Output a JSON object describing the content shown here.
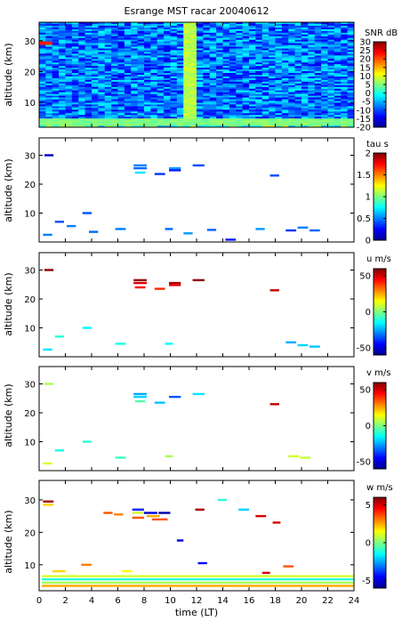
{
  "title": "Esrange MST racar 20040612",
  "chart_data": [
    {
      "type": "heatmap",
      "panel": "snr",
      "ylabel": "altitude (km)",
      "colorbar_label": "SNR dB",
      "xlim": [
        0,
        24
      ],
      "ylim": [
        2,
        36
      ],
      "clim": [
        -20,
        30
      ],
      "yticks": [
        10,
        20,
        30
      ],
      "cticks": [
        -20,
        -15,
        -10,
        -5,
        0,
        5,
        10,
        15,
        20,
        25,
        30
      ],
      "description_bands": [
        {
          "x": [
            11.2,
            12.0
          ],
          "y": [
            3,
            36
          ],
          "value": 8
        },
        {
          "x": [
            0.2,
            1.0
          ],
          "y": [
            28.5,
            30
          ],
          "value": 22
        },
        {
          "x": [
            0,
            24
          ],
          "y": [
            2.5,
            5
          ],
          "value": 5
        }
      ]
    },
    {
      "type": "heatmap",
      "panel": "tau",
      "ylabel": "altitude (km)",
      "colorbar_label": "tau s",
      "xlim": [
        0,
        24
      ],
      "ylim": [
        0,
        36
      ],
      "clim": [
        0,
        2
      ],
      "yticks": [
        10,
        20,
        30
      ],
      "cticks": [
        0,
        0.5,
        1,
        1.5,
        2
      ],
      "segments": [
        {
          "x": [
            0.4,
            1.1
          ],
          "y": 30,
          "v": 0.15
        },
        {
          "x": [
            7.2,
            8.2
          ],
          "y": 26.5,
          "v": 0.5
        },
        {
          "x": [
            7.2,
            8.2
          ],
          "y": 25.5,
          "v": 0.45
        },
        {
          "x": [
            7.3,
            8.1
          ],
          "y": 24,
          "v": 0.7
        },
        {
          "x": [
            8.8,
            9.6
          ],
          "y": 23.5,
          "v": 0.35
        },
        {
          "x": [
            9.9,
            10.8
          ],
          "y": 25.5,
          "v": 0.55
        },
        {
          "x": [
            9.9,
            10.8
          ],
          "y": 24.8,
          "v": 0.3
        },
        {
          "x": [
            11.7,
            12.6
          ],
          "y": 26.5,
          "v": 0.4
        },
        {
          "x": [
            17.6,
            18.3
          ],
          "y": 23,
          "v": 0.4
        },
        {
          "x": [
            1.2,
            1.9
          ],
          "y": 7,
          "v": 0.4
        },
        {
          "x": [
            2.1,
            2.8
          ],
          "y": 5.5,
          "v": 0.5
        },
        {
          "x": [
            3.3,
            4.0
          ],
          "y": 10,
          "v": 0.4
        },
        {
          "x": [
            0.3,
            1.0
          ],
          "y": 2.5,
          "v": 0.5
        },
        {
          "x": [
            3.8,
            4.5
          ],
          "y": 3.5,
          "v": 0.45
        },
        {
          "x": [
            5.8,
            6.6
          ],
          "y": 4.5,
          "v": 0.5
        },
        {
          "x": [
            9.6,
            10.2
          ],
          "y": 4.5,
          "v": 0.45
        },
        {
          "x": [
            11.0,
            11.7
          ],
          "y": 3.0,
          "v": 0.55
        },
        {
          "x": [
            12.8,
            13.5
          ],
          "y": 4.2,
          "v": 0.45
        },
        {
          "x": [
            14.2,
            15.0
          ],
          "y": 0.8,
          "v": 0.3
        },
        {
          "x": [
            16.5,
            17.2
          ],
          "y": 4.5,
          "v": 0.55
        },
        {
          "x": [
            18.8,
            19.6
          ],
          "y": 4.0,
          "v": 0.35
        },
        {
          "x": [
            19.7,
            20.5
          ],
          "y": 5.0,
          "v": 0.5
        },
        {
          "x": [
            20.6,
            21.4
          ],
          "y": 4.0,
          "v": 0.45
        }
      ]
    },
    {
      "type": "heatmap",
      "panel": "u",
      "ylabel": "altitude (km)",
      "colorbar_label": "u m/s",
      "xlim": [
        0,
        24
      ],
      "ylim": [
        0,
        36
      ],
      "clim": [
        -60,
        60
      ],
      "yticks": [
        10,
        20,
        30
      ],
      "cticks": [
        -50,
        0,
        50
      ],
      "segments": [
        {
          "x": [
            0.4,
            1.1
          ],
          "y": 30,
          "v": 58
        },
        {
          "x": [
            7.2,
            8.2
          ],
          "y": 26.5,
          "v": 58
        },
        {
          "x": [
            7.2,
            8.2
          ],
          "y": 25.5,
          "v": 50
        },
        {
          "x": [
            7.3,
            8.1
          ],
          "y": 24,
          "v": 45
        },
        {
          "x": [
            8.8,
            9.6
          ],
          "y": 23.5,
          "v": 40
        },
        {
          "x": [
            9.9,
            10.8
          ],
          "y": 25.5,
          "v": 55
        },
        {
          "x": [
            9.9,
            10.8
          ],
          "y": 24.8,
          "v": 48
        },
        {
          "x": [
            11.7,
            12.6
          ],
          "y": 26.5,
          "v": 58
        },
        {
          "x": [
            17.6,
            18.3
          ],
          "y": 23,
          "v": 52
        },
        {
          "x": [
            1.2,
            1.9
          ],
          "y": 7,
          "v": -10
        },
        {
          "x": [
            3.3,
            4.0
          ],
          "y": 10,
          "v": -15
        },
        {
          "x": [
            0.3,
            1.0
          ],
          "y": 2.5,
          "v": -18
        },
        {
          "x": [
            5.8,
            6.6
          ],
          "y": 4.5,
          "v": -12
        },
        {
          "x": [
            9.6,
            10.2
          ],
          "y": 4.5,
          "v": -15
        },
        {
          "x": [
            18.8,
            19.6
          ],
          "y": 5.0,
          "v": -25
        },
        {
          "x": [
            19.7,
            20.5
          ],
          "y": 4.0,
          "v": -20
        },
        {
          "x": [
            20.6,
            21.4
          ],
          "y": 3.5,
          "v": -22
        }
      ]
    },
    {
      "type": "heatmap",
      "panel": "v",
      "ylabel": "altitude (km)",
      "colorbar_label": "v m/s",
      "xlim": [
        0,
        24
      ],
      "ylim": [
        0,
        36
      ],
      "clim": [
        -60,
        60
      ],
      "yticks": [
        10,
        20,
        30
      ],
      "cticks": [
        -50,
        0,
        50
      ],
      "segments": [
        {
          "x": [
            0.4,
            1.1
          ],
          "y": 30,
          "v": 5
        },
        {
          "x": [
            7.2,
            8.2
          ],
          "y": 26.5,
          "v": -25
        },
        {
          "x": [
            7.2,
            8.2
          ],
          "y": 25.5,
          "v": -20
        },
        {
          "x": [
            7.3,
            8.1
          ],
          "y": 24,
          "v": -5
        },
        {
          "x": [
            8.8,
            9.6
          ],
          "y": 23.5,
          "v": -22
        },
        {
          "x": [
            9.9,
            10.8
          ],
          "y": 25.5,
          "v": -35
        },
        {
          "x": [
            11.7,
            12.6
          ],
          "y": 26.5,
          "v": -18
        },
        {
          "x": [
            17.6,
            18.3
          ],
          "y": 23,
          "v": 52
        },
        {
          "x": [
            1.2,
            1.9
          ],
          "y": 7,
          "v": -12
        },
        {
          "x": [
            3.3,
            4.0
          ],
          "y": 10,
          "v": -10
        },
        {
          "x": [
            0.3,
            1.0
          ],
          "y": 2.5,
          "v": 10
        },
        {
          "x": [
            5.8,
            6.6
          ],
          "y": 4.5,
          "v": -8
        },
        {
          "x": [
            9.6,
            10.2
          ],
          "y": 5.0,
          "v": 5
        },
        {
          "x": [
            19.0,
            19.8
          ],
          "y": 5.0,
          "v": 10
        },
        {
          "x": [
            19.9,
            20.7
          ],
          "y": 4.5,
          "v": 8
        }
      ]
    },
    {
      "type": "heatmap",
      "panel": "w",
      "ylabel": "altitude (km)",
      "xlabel": "time (LT)",
      "colorbar_label": "w m/s",
      "xlim": [
        0,
        24
      ],
      "ylim": [
        2,
        36
      ],
      "clim": [
        -6,
        6
      ],
      "xticks": [
        0,
        2,
        4,
        6,
        8,
        10,
        12,
        14,
        16,
        18,
        20,
        22,
        24
      ],
      "yticks": [
        10,
        20,
        30
      ],
      "cticks": [
        -5,
        0,
        5
      ],
      "segments": [
        {
          "x": [
            0.3,
            1.1
          ],
          "y": 29.5,
          "v": 5.5
        },
        {
          "x": [
            0.3,
            1.1
          ],
          "y": 28.5,
          "v": 2
        },
        {
          "x": [
            4.9,
            5.6
          ],
          "y": 26,
          "v": 3.5
        },
        {
          "x": [
            5.7,
            6.4
          ],
          "y": 25.5,
          "v": 3
        },
        {
          "x": [
            7.1,
            8.0
          ],
          "y": 27,
          "v": -4
        },
        {
          "x": [
            7.1,
            8.0
          ],
          "y": 26,
          "v": 1
        },
        {
          "x": [
            7.1,
            8.0
          ],
          "y": 24.5,
          "v": 3.5
        },
        {
          "x": [
            8.0,
            9.0
          ],
          "y": 26,
          "v": -5
        },
        {
          "x": [
            8.2,
            9.2
          ],
          "y": 25,
          "v": 2.5
        },
        {
          "x": [
            8.6,
            9.8
          ],
          "y": 24,
          "v": 3.5
        },
        {
          "x": [
            9.1,
            10.0
          ],
          "y": 26,
          "v": -5.5
        },
        {
          "x": [
            11.9,
            12.6
          ],
          "y": 27,
          "v": 5.5
        },
        {
          "x": [
            10.5,
            11.0
          ],
          "y": 17.5,
          "v": -5
        },
        {
          "x": [
            15.2,
            16.0
          ],
          "y": 27,
          "v": -2
        },
        {
          "x": [
            16.5,
            17.3
          ],
          "y": 25,
          "v": 5
        },
        {
          "x": [
            17.8,
            18.4
          ],
          "y": 23,
          "v": 5
        },
        {
          "x": [
            13.6,
            14.3
          ],
          "y": 30,
          "v": -1
        },
        {
          "x": [
            3.2,
            4.0
          ],
          "y": 10,
          "v": 3
        },
        {
          "x": [
            12.1,
            12.8
          ],
          "y": 10.5,
          "v": -4.5
        },
        {
          "x": [
            17.0,
            17.6
          ],
          "y": 7.5,
          "v": 5
        },
        {
          "x": [
            18.6,
            19.4
          ],
          "y": 9.5,
          "v": 3.5
        },
        {
          "x": [
            1.0,
            2.0
          ],
          "y": 8,
          "v": 2
        },
        {
          "x": [
            6.3,
            7.1
          ],
          "y": 8,
          "v": 1.5
        },
        {
          "x": [
            0.2,
            24
          ],
          "y": 4.5,
          "v": 0.5
        },
        {
          "x": [
            0.2,
            24
          ],
          "y": 3.5,
          "v": 2.5
        },
        {
          "x": [
            0.2,
            24
          ],
          "y": 5.5,
          "v": -1
        },
        {
          "x": [
            0.2,
            24
          ],
          "y": 6.5,
          "v": 1
        }
      ]
    }
  ]
}
